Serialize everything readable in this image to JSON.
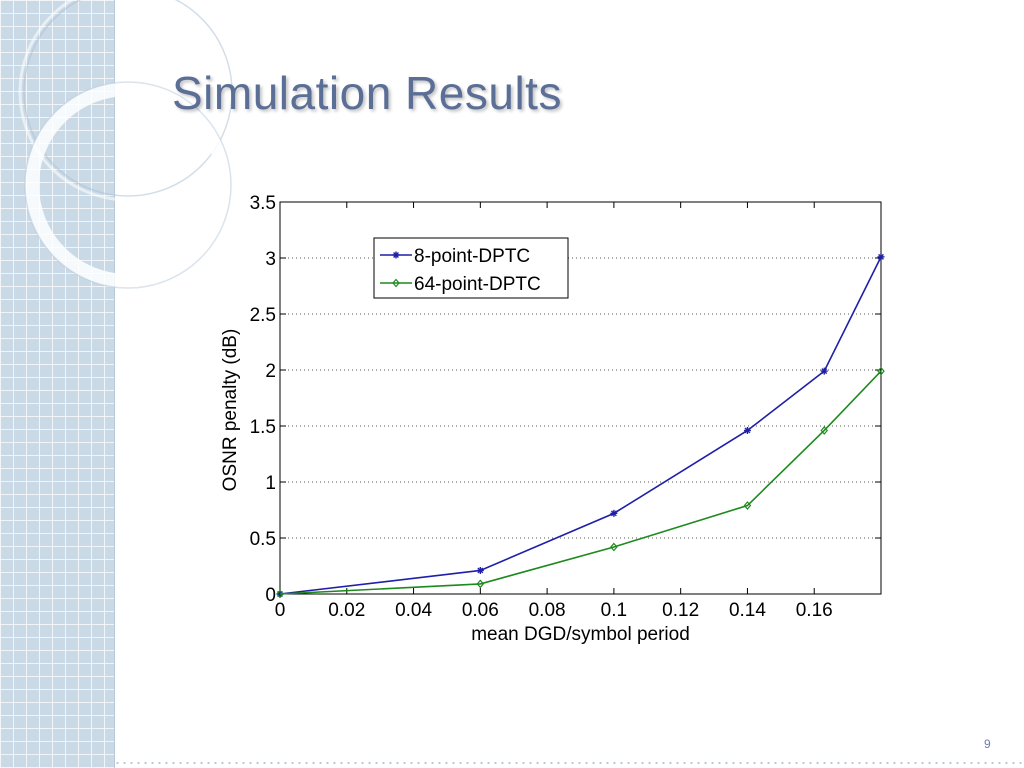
{
  "slide": {
    "title": "Simulation Results",
    "page_number": "9"
  },
  "colors": {
    "title": "#5a6e96",
    "series_8pt": "#1f1fa8",
    "series_64pt": "#1d8a1d",
    "left_panel": "#c9d9e6"
  },
  "chart_data": {
    "type": "line",
    "title": "",
    "xlabel": "mean DGD/symbol period",
    "ylabel": "OSNR penalty (dB)",
    "xlim": [
      0,
      0.18
    ],
    "ylim": [
      0,
      3.5
    ],
    "xticks": [
      0,
      0.02,
      0.04,
      0.06,
      0.08,
      0.1,
      0.12,
      0.14,
      0.16
    ],
    "xtick_labels": [
      "0",
      "0.02",
      "0.04",
      "0.06",
      "0.08",
      "0.1",
      "0.12",
      "0.14",
      "0.16"
    ],
    "yticks": [
      0,
      0.5,
      1,
      1.5,
      2,
      2.5,
      3,
      3.5
    ],
    "ytick_labels": [
      "0",
      "0.5",
      "1",
      "1.5",
      "2",
      "2.5",
      "3",
      "3.5"
    ],
    "grid": "horizontal-dotted",
    "legend_position": "top-left",
    "series": [
      {
        "name": "8-point-DPTC",
        "marker": "star",
        "x": [
          0,
          0.06,
          0.1,
          0.14,
          0.163,
          0.18
        ],
        "y": [
          0,
          0.21,
          0.72,
          1.46,
          1.99,
          3.01
        ]
      },
      {
        "name": "64-point-DPTC",
        "marker": "diamond",
        "x": [
          0,
          0.06,
          0.1,
          0.14,
          0.163,
          0.18
        ],
        "y": [
          0,
          0.09,
          0.42,
          0.79,
          1.46,
          1.99
        ]
      }
    ]
  }
}
